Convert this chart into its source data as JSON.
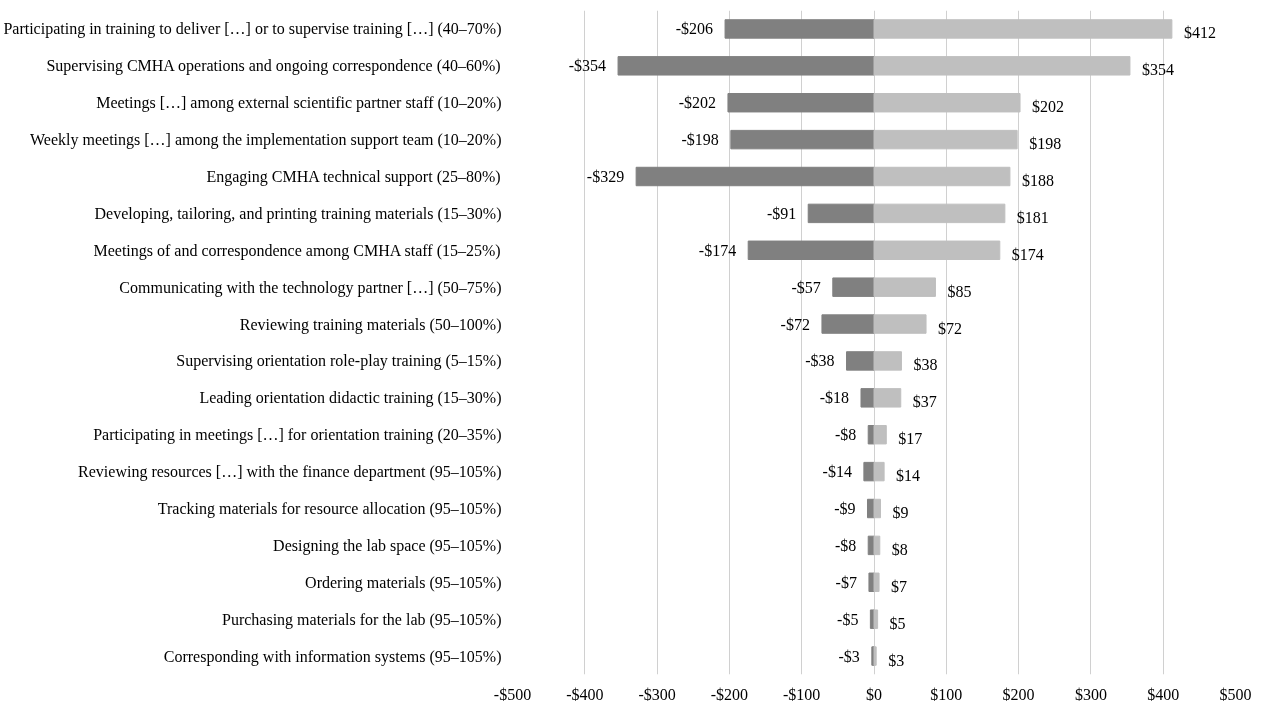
{
  "chart_data": {
    "type": "bar",
    "orientation": "horizontal",
    "categories": [
      "Participating in training to deliver […] or to supervise training […] (40–70%)",
      "Supervising CMHA operations and ongoing correspondence (40–60%)",
      "Meetings […] among external scientific partner staff (10–20%)",
      "Weekly meetings […] among the implementation support team (10–20%)",
      "Engaging CMHA technical support (25–80%)",
      "Developing, tailoring, and printing training materials (15–30%)",
      "Meetings of and correspondence among CMHA staff (15–25%)",
      "Communicating with the technology partner […] (50–75%)",
      "Reviewing training materials (50–100%)",
      "Supervising orientation role-play training (5–15%)",
      "Leading orientation didactic training (15–30%)",
      "Participating in meetings […] for orientation training (20–35%)",
      "Reviewing resources […] with the finance department (95–105%)",
      "Tracking materials for resource allocation (95–105%)",
      "Designing the lab space (95–105%)",
      "Ordering materials (95–105%)",
      "Purchasing materials for the lab (95–105%)",
      "Corresponding with information systems (95–105%)"
    ],
    "series": [
      {
        "color": "#808080",
        "values": [
          -206,
          -354,
          -202,
          -198,
          -329,
          -91,
          -174,
          -57,
          -72,
          -38,
          -18,
          -8,
          -14,
          -9,
          -8,
          -7,
          -5,
          -3
        ],
        "value_labels": [
          "-$206",
          "-$354",
          "-$202",
          "-$198",
          "-$329",
          "-$91",
          "-$174",
          "-$57",
          "-$72",
          "-$38",
          "-$18",
          "-$8",
          "-$14",
          "-$9",
          "-$8",
          "-$7",
          "-$5",
          "-$3"
        ]
      },
      {
        "color": "#bfbfbf",
        "values": [
          412,
          354,
          202,
          198,
          188,
          181,
          174,
          85,
          72,
          38,
          37,
          17,
          14,
          9,
          8,
          7,
          5,
          3
        ],
        "value_labels": [
          "$412",
          "$354",
          "$202",
          "$198",
          "$188",
          "$181",
          "$174",
          "$85",
          "$72",
          "$38",
          "$37",
          "$17",
          "$14",
          "$9",
          "$8",
          "$7",
          "$5",
          "$3"
        ]
      }
    ],
    "xlim": [
      -500,
      500
    ],
    "xticks": [
      {
        "value": -500,
        "label": "-$500"
      },
      {
        "value": -400,
        "label": "-$400"
      },
      {
        "value": -300,
        "label": "-$300"
      },
      {
        "value": -200,
        "label": "-$200"
      },
      {
        "value": -100,
        "label": "-$100"
      },
      {
        "value": 0,
        "label": "$0"
      },
      {
        "value": 100,
        "label": "$100"
      },
      {
        "value": 200,
        "label": "$200"
      },
      {
        "value": 300,
        "label": "$300"
      },
      {
        "value": 400,
        "label": "$400"
      },
      {
        "value": 500,
        "label": "$500"
      }
    ],
    "grid": "x",
    "stacked": true
  }
}
